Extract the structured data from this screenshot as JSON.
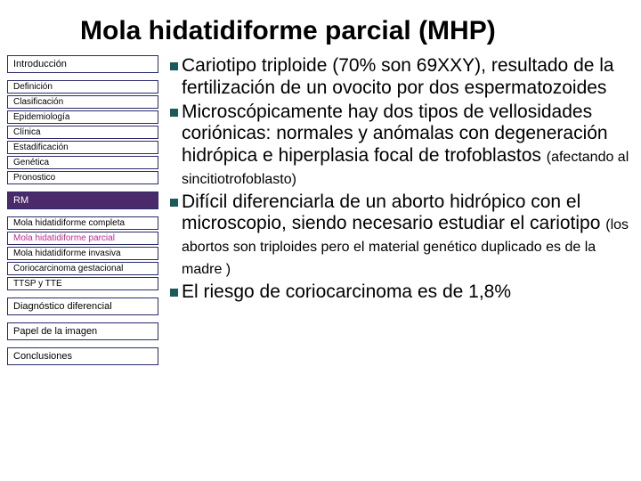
{
  "title": "Mola hidatidiforme parcial (MHP)",
  "sidebar": {
    "intro": "Introducción",
    "defs": {
      "a": "Definición",
      "b": "Clasificación",
      "c": "Epidemiología",
      "d": "Clínica",
      "e": "Estadificación",
      "f": "Genética",
      "g": "Pronostico"
    },
    "rm": "RM",
    "mola": {
      "a": "Mola hidatidiforme completa",
      "b": "Mola hidatidiforme parcial",
      "c": "Mola hidatidiforme invasiva"
    },
    "corio": "Coriocarcinoma gestacional",
    "ttsp": "TTSP y TTE",
    "diag": "Diagnóstico diferencial",
    "papel": "Papel de la imagen",
    "concl": "Conclusiones"
  },
  "bullets": {
    "b1": "Cariotipo triploide (70% son 69XXY), resultado de la fertilización de un ovocito por dos espermatozoides",
    "b2a": "Microscópicamente hay dos tipos de vellosidades coriónicas: normales  y anómalas con degeneración hidrópica e hiperplasia focal de trofoblastos ",
    "b2b": "(afectando al sincitiotrofoblasto)",
    "b3a": "Difícil diferenciarla de un aborto hidrópico con el microscopio, siendo necesario estudiar el cariotipo ",
    "b3b": "(los abortos son triploides pero el material genético duplicado es de la madre )",
    "b4": "El riesgo de  coriocarcinoma es de 1,8%"
  },
  "colors": {
    "bullet": "#1a5a5a",
    "darkbox": "#4a2a6a",
    "highlight": "#c02a8a",
    "border": "#2a2a6a"
  }
}
